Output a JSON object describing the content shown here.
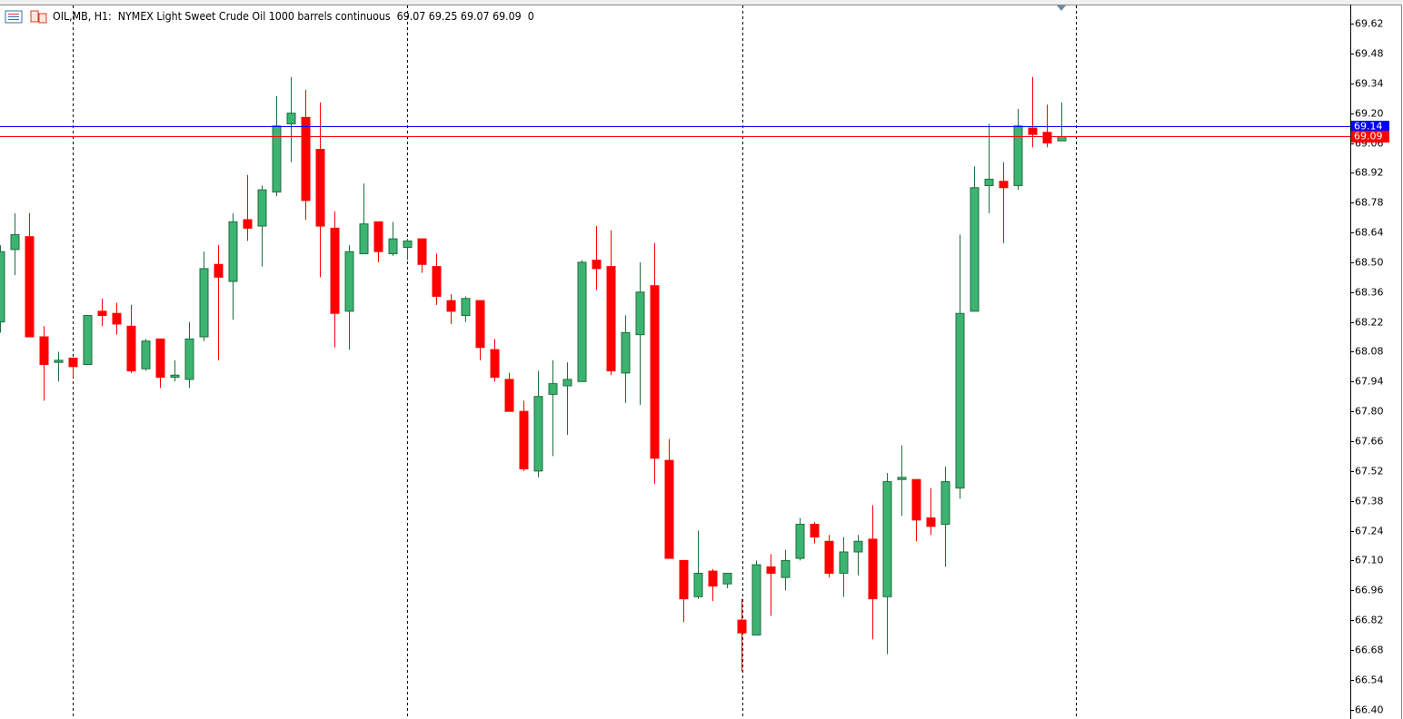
{
  "chart_data": {
    "type": "candlestick",
    "title": "OIL,MB, H1:  NYMEX Light Sweet Crude Oil 1000 barrels continuous",
    "last_volume": 0,
    "up_color": "#3cb371",
    "down_color": "#ff0000",
    "open": [
      68.22,
      68.56,
      68.62,
      68.15,
      68.03,
      68.05,
      68.02,
      68.27,
      68.26,
      68.2,
      68.0,
      68.14,
      67.96,
      67.95,
      68.15,
      68.49,
      68.41,
      68.7,
      68.67,
      68.83,
      69.15,
      69.18,
      69.03,
      68.66,
      68.27,
      68.54,
      68.69,
      68.54,
      68.57,
      68.61,
      68.48,
      68.32,
      68.25,
      68.32,
      68.09,
      67.95,
      67.8,
      67.52,
      67.88,
      67.92,
      67.94,
      68.51,
      68.48,
      67.98,
      68.16,
      68.39,
      67.57,
      67.1,
      66.93,
      67.05,
      66.99,
      66.82,
      66.75,
      67.07,
      67.02,
      67.11,
      67.27,
      67.19,
      67.04,
      67.14,
      67.2,
      66.93,
      67.48,
      67.48,
      67.3,
      67.27,
      67.44,
      68.27,
      68.86,
      68.88,
      68.86,
      69.13,
      69.11,
      69.07
    ],
    "high": [
      68.58,
      68.73,
      68.73,
      68.2,
      68.08,
      68.05,
      68.25,
      68.33,
      68.31,
      68.3,
      68.14,
      68.14,
      68.04,
      68.22,
      68.55,
      68.58,
      68.73,
      68.91,
      68.86,
      69.28,
      69.37,
      69.31,
      69.25,
      68.74,
      68.58,
      68.87,
      68.69,
      68.69,
      68.61,
      68.61,
      68.54,
      68.35,
      68.34,
      68.32,
      68.14,
      67.98,
      67.85,
      67.99,
      68.04,
      68.03,
      68.51,
      68.67,
      68.65,
      68.25,
      68.5,
      68.59,
      67.67,
      67.1,
      67.24,
      67.06,
      67.04,
      66.92,
      67.1,
      67.13,
      67.15,
      67.3,
      67.28,
      67.22,
      67.21,
      67.22,
      67.36,
      67.51,
      67.64,
      67.48,
      67.44,
      67.54,
      68.63,
      68.95,
      69.15,
      68.97,
      69.22,
      69.37,
      69.24,
      69.25
    ],
    "low": [
      68.17,
      68.44,
      68.15,
      67.85,
      67.94,
      67.96,
      68.02,
      68.2,
      68.16,
      67.98,
      67.99,
      67.91,
      67.94,
      67.91,
      68.13,
      68.04,
      68.23,
      68.6,
      68.48,
      68.81,
      68.97,
      68.7,
      68.43,
      68.1,
      68.09,
      68.54,
      68.5,
      68.53,
      68.51,
      68.45,
      68.3,
      68.21,
      68.22,
      68.04,
      67.94,
      67.8,
      67.52,
      67.49,
      67.59,
      67.69,
      67.94,
      68.37,
      67.97,
      67.84,
      67.83,
      67.46,
      67.11,
      66.81,
      66.92,
      66.91,
      66.97,
      66.58,
      66.75,
      66.84,
      66.96,
      67.1,
      67.18,
      67.02,
      66.93,
      67.03,
      66.73,
      66.66,
      67.31,
      67.19,
      67.22,
      67.07,
      67.39,
      68.27,
      68.73,
      68.59,
      68.84,
      69.04,
      69.04,
      69.07
    ],
    "close": [
      68.55,
      68.63,
      68.15,
      68.02,
      68.04,
      68.01,
      68.25,
      68.25,
      68.21,
      67.99,
      68.13,
      67.96,
      67.97,
      68.14,
      68.47,
      68.43,
      68.69,
      68.66,
      68.84,
      69.14,
      69.2,
      68.79,
      68.67,
      68.26,
      68.55,
      68.68,
      68.55,
      68.61,
      68.6,
      68.49,
      68.34,
      68.27,
      68.33,
      68.1,
      67.96,
      67.8,
      67.53,
      67.87,
      67.93,
      67.95,
      68.5,
      68.47,
      67.99,
      68.17,
      68.36,
      67.58,
      67.11,
      66.92,
      67.04,
      66.98,
      67.04,
      66.76,
      67.08,
      67.04,
      67.1,
      67.27,
      67.21,
      67.04,
      67.14,
      67.19,
      66.92,
      67.47,
      67.49,
      67.29,
      67.26,
      67.47,
      68.26,
      68.85,
      68.89,
      68.85,
      69.14,
      69.1,
      69.06,
      69.09
    ],
    "price_lines": [
      {
        "value": 69.14,
        "color": "#0000ff"
      },
      {
        "value": 69.09,
        "color": "#ff0000"
      }
    ],
    "ylim": [
      66.36,
      69.71
    ],
    "yticks": [
      69.62,
      69.48,
      69.34,
      {
        "value": 69.2,
        "label": "69.20"
      },
      69.06,
      68.92,
      68.78,
      68.64,
      {
        "value": 68.5,
        "label": "68.50"
      },
      68.36,
      68.22,
      68.08,
      67.94,
      {
        "value": 67.8,
        "label": "67.80"
      },
      67.66,
      67.52,
      67.38,
      67.24,
      {
        "value": 67.1,
        "label": "67.10"
      },
      66.96,
      66.82,
      66.68,
      66.54,
      {
        "value": 66.4,
        "label": "66.40"
      }
    ]
  }
}
